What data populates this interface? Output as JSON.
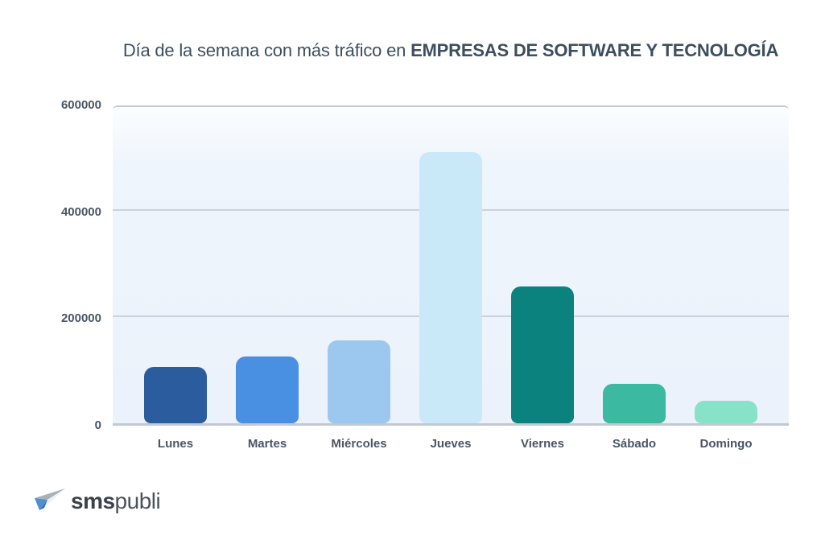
{
  "title": {
    "prefix": "Día de la semana con más tráfico en ",
    "emphasis": "EMPRESAS DE SOFTWARE Y TECNOLOGÍA"
  },
  "chart_data": {
    "type": "bar",
    "title": "Día de la semana con más tráfico en EMPRESAS DE SOFTWARE Y TECNOLOGÍA",
    "categories": [
      "Lunes",
      "Martes",
      "Miércoles",
      "Jueves",
      "Viernes",
      "Sábado",
      "Domingo"
    ],
    "values": [
      107000,
      127000,
      158000,
      515000,
      260000,
      75000,
      42000
    ],
    "colors": [
      "#2b5c9e",
      "#4a90e2",
      "#9cc8f0",
      "#c9e9f9",
      "#0c827f",
      "#3bbaa1",
      "#87e2c8"
    ],
    "xlabel": "",
    "ylabel": "",
    "ylim": [
      0,
      600000
    ],
    "yticks": [
      0,
      200000,
      400000,
      600000
    ],
    "ytick_labels": [
      "0",
      "200000",
      "400000",
      "600000"
    ],
    "grid": true,
    "legend": false,
    "plot_background": "#ecf2fb",
    "gridline_color": "#ccd2db"
  },
  "logo": {
    "bold": "sms",
    "light": "publi"
  }
}
